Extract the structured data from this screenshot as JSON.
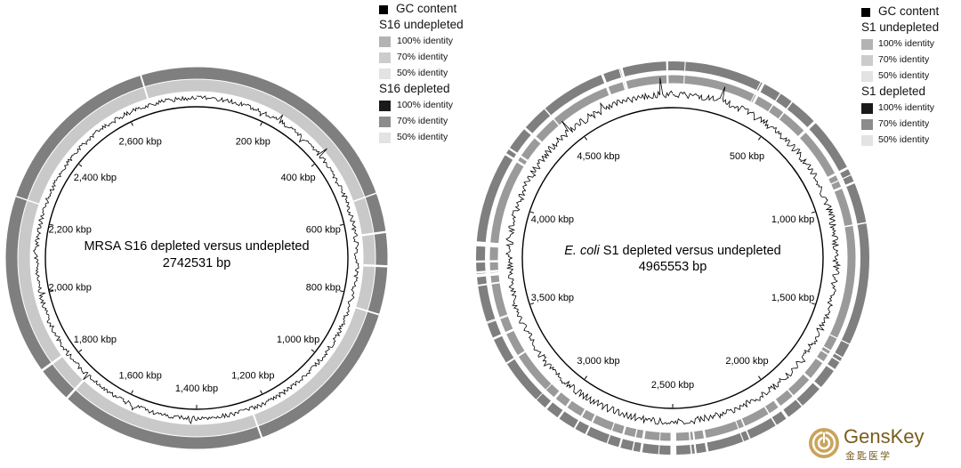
{
  "left_plot": {
    "title": "MRSA S16 depleted versus undepleted",
    "title_italic": "",
    "title_rest": "",
    "subtitle": "2742531 bp",
    "tick_labels": [
      "200 kbp",
      "400 kbp",
      "600 kbp",
      "800 kbp",
      "1,000 kbp",
      "1,200 kbp",
      "1,400 kbp",
      "1,600 kbp",
      "1,800 kbp",
      "2,000 kbp",
      "2,200 kbp",
      "2,400 kbp",
      "2,600 kbp"
    ],
    "legend": {
      "gc_label": "GC content",
      "group1_title": "S16 undepleted",
      "group1_items": [
        "100% identity",
        "70% identity",
        "50% identity"
      ],
      "group2_title": "S16 depleted",
      "group2_items": [
        "100% identity",
        "70% identity",
        "50% identity"
      ]
    }
  },
  "right_plot": {
    "title_italic": "E. coli",
    "title_rest": " S1 depleted versus undepleted",
    "subtitle": "4965553 bp",
    "tick_labels": [
      "500 kbp",
      "1,000 kbp",
      "1,500 kbp",
      "2,000 kbp",
      "2,500 kbp",
      "3,000 kbp",
      "3,500 kbp",
      "4,000 kbp",
      "4,500 kbp"
    ],
    "legend": {
      "gc_label": "GC content",
      "group1_title": "S1 undepleted",
      "group1_items": [
        "100% identity",
        "70% identity",
        "50% identity"
      ],
      "group2_title": "S1 depleted",
      "group2_items": [
        "100% identity",
        "70% identity",
        "50% identity"
      ]
    }
  },
  "colors": {
    "gc": "#000000",
    "undepleted_100": "#b3b3b3",
    "undepleted_70": "#cccccc",
    "undepleted_50": "#e3e3e3",
    "depleted_100": "#1a1a1a",
    "depleted_70": "#8c8c8c",
    "depleted_50": "#e3e3e3",
    "outer_ring": "#7f7f7f",
    "inner_ring_left": "#c9c9c9"
  },
  "logo": {
    "brand": "GensKey",
    "brand_cn": "金匙医学"
  }
}
